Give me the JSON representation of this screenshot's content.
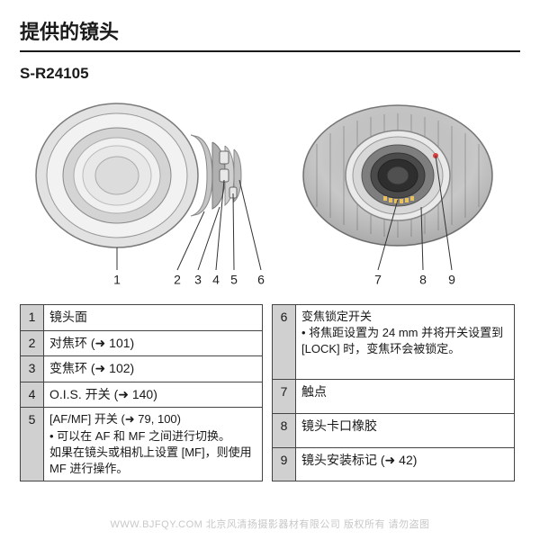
{
  "title": "提供的镜头",
  "model": "S-R24105",
  "callouts": [
    "1",
    "2",
    "3",
    "4",
    "5",
    "6",
    "7",
    "8",
    "9"
  ],
  "leftTable": [
    {
      "n": "1",
      "text": "镜头面"
    },
    {
      "n": "2",
      "text": "对焦环 (➜ 101)"
    },
    {
      "n": "3",
      "text": "变焦环 (➜ 102)"
    },
    {
      "n": "4",
      "text": "O.I.S. 开关 (➜ 140)"
    },
    {
      "n": "5",
      "text": "[AF/MF] 开关 (➜ 79, 100)\n• 可以在 AF 和 MF 之间进行切换。\n如果在镜头或相机上设置 [MF]，则使用 MF 进行操作。"
    }
  ],
  "rightTable": [
    {
      "n": "6",
      "text": "变焦锁定开关\n• 将焦距设置为 24 mm 并将开关设置到 [LOCK] 时，变焦环会被锁定。"
    },
    {
      "n": "7",
      "text": "触点"
    },
    {
      "n": "8",
      "text": "镜头卡口橡胶"
    },
    {
      "n": "9",
      "text": "镜头安装标记 (➜ 42)"
    }
  ],
  "watermark": "WWW.BJFQY.COM 北京风清扬摄影器材有限公司 版权所有 请勿盗图",
  "colors": {
    "lensBody": "#d8d8d8",
    "lensDark": "#b8b8b8",
    "lensRing": "#888888",
    "lensBlack": "#3a3a3a",
    "line": "#333333"
  }
}
